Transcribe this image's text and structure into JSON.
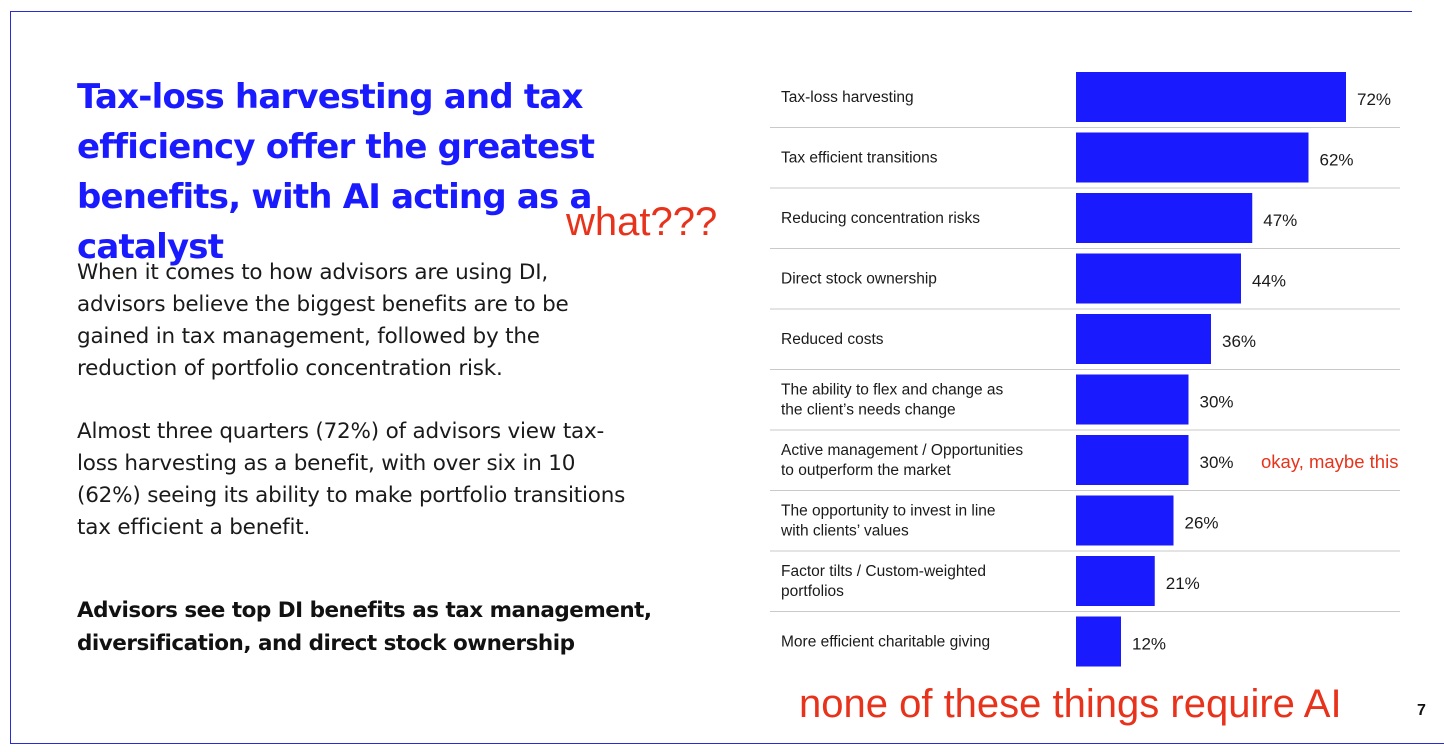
{
  "slide": {
    "headline": "Tax-loss harvesting and tax efficiency offer the greatest benefits, with AI acting as a catalyst",
    "paragraph1": "When it comes to how advisors are using DI, advisors believe the biggest benefits are to be gained in tax management, followed by the reduction of portfolio concentration risk.",
    "paragraph2": "Almost three quarters (72%) of advisors view tax-loss harvesting as a benefit, with over six in 10 (62%) seeing its ability to make portfolio transitions tax efficient a benefit.",
    "subheading": "Advisors see top DI benefits as tax management, diversification, and direct stock ownership",
    "page_number": "7",
    "accent_color": "#1a1aff",
    "annotation_color": "#e8331c"
  },
  "annotations": {
    "what": "what???",
    "maybe": "okay, maybe this",
    "none": "none of these things require AI"
  },
  "chart_data": {
    "type": "bar",
    "orientation": "horizontal",
    "categories": [
      [
        "Tax-loss harvesting"
      ],
      [
        "Tax efficient transitions"
      ],
      [
        "Reducing concentration risks"
      ],
      [
        "Direct stock ownership"
      ],
      [
        "Reduced costs"
      ],
      [
        "The ability to flex and change as",
        "the client’s needs change"
      ],
      [
        "Active management / Opportunities",
        "to outperform the market"
      ],
      [
        "The opportunity to invest in line",
        "with clients’ values"
      ],
      [
        "Factor tilts / Custom-weighted",
        "portfolios"
      ],
      [
        "More efficient charitable giving"
      ]
    ],
    "values": [
      72,
      62,
      47,
      44,
      36,
      30,
      30,
      26,
      21,
      12
    ],
    "value_labels": [
      "72%",
      "62%",
      "47%",
      "44%",
      "36%",
      "30%",
      "30%",
      "26%",
      "21%",
      "12%"
    ],
    "bar_color": "#1a1aff",
    "xlim": [
      0,
      72
    ],
    "grid": false
  }
}
